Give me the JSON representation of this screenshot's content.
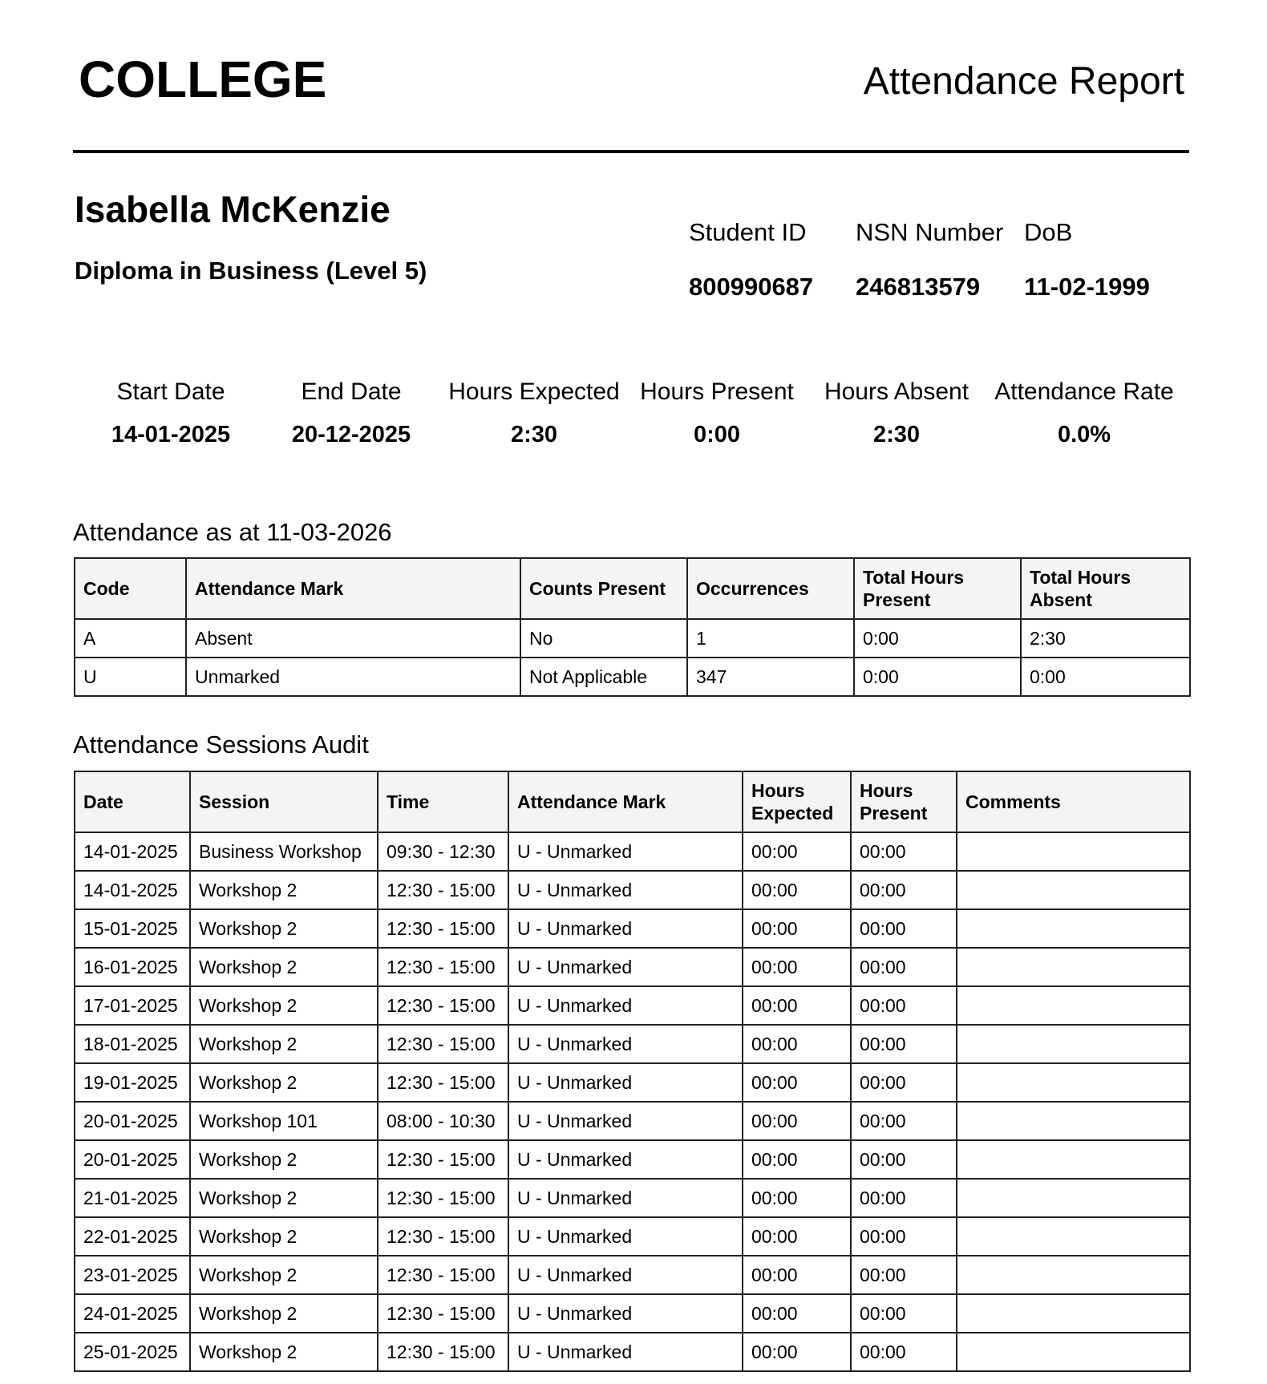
{
  "header": {
    "title": "COLLEGE",
    "report_title": "Attendance Report"
  },
  "student": {
    "name": "Isabella McKenzie",
    "course": "Diploma in Business (Level 5)",
    "fields": [
      {
        "label": "Student ID",
        "value": "800990687"
      },
      {
        "label": "NSN Number",
        "value": "246813579"
      },
      {
        "label": "DoB",
        "value": "11-02-1999"
      }
    ]
  },
  "summary": [
    {
      "label": "Start Date",
      "value": "14-01-2025"
    },
    {
      "label": "End Date",
      "value": "20-12-2025"
    },
    {
      "label": "Hours Expected",
      "value": "2:30"
    },
    {
      "label": "Hours Present",
      "value": "0:00"
    },
    {
      "label": "Hours Absent",
      "value": "2:30"
    },
    {
      "label": "Attendance Rate",
      "value": "0.0%"
    }
  ],
  "mark_summary": {
    "title": "Attendance as at 11-03-2026",
    "columns": [
      "Code",
      "Attendance Mark",
      "Counts Present",
      "Occurrences",
      "Total Hours Present",
      "Total Hours Absent"
    ],
    "rows": [
      [
        "A",
        "Absent",
        "No",
        "1",
        "0:00",
        "2:30"
      ],
      [
        "U",
        "Unmarked",
        "Not Applicable",
        "347",
        "0:00",
        "0:00"
      ]
    ]
  },
  "sessions_audit": {
    "title": "Attendance Sessions Audit",
    "columns": [
      "Date",
      "Session",
      "Time",
      "Attendance Mark",
      "Hours Expected",
      "Hours Present",
      "Comments"
    ],
    "rows": [
      [
        "14-01-2025",
        "Business Workshop",
        "09:30 - 12:30",
        "U - Unmarked",
        "00:00",
        "00:00"
      ],
      [
        "14-01-2025",
        "Workshop 2",
        "12:30 - 15:00",
        "U - Unmarked",
        "00:00",
        "00:00"
      ],
      [
        "15-01-2025",
        "Workshop 2",
        "12:30 - 15:00",
        "U - Unmarked",
        "00:00",
        "00:00"
      ],
      [
        "16-01-2025",
        "Workshop 2",
        "12:30 - 15:00",
        "U - Unmarked",
        "00:00",
        "00:00"
      ],
      [
        "17-01-2025",
        "Workshop 2",
        "12:30 - 15:00",
        "U - Unmarked",
        "00:00",
        "00:00"
      ],
      [
        "18-01-2025",
        "Workshop 2",
        "12:30 - 15:00",
        "U - Unmarked",
        "00:00",
        "00:00"
      ],
      [
        "19-01-2025",
        "Workshop 2",
        "12:30 - 15:00",
        "U - Unmarked",
        "00:00",
        "00:00"
      ],
      [
        "20-01-2025",
        "Workshop 101",
        "08:00 - 10:30",
        "U - Unmarked",
        "00:00",
        "00:00"
      ],
      [
        "20-01-2025",
        "Workshop 2",
        "12:30 - 15:00",
        "U - Unmarked",
        "00:00",
        "00:00"
      ],
      [
        "21-01-2025",
        "Workshop 2",
        "12:30 - 15:00",
        "U - Unmarked",
        "00:00",
        "00:00"
      ],
      [
        "22-01-2025",
        "Workshop 2",
        "12:30 - 15:00",
        "U - Unmarked",
        "00:00",
        "00:00"
      ],
      [
        "23-01-2025",
        "Workshop 2",
        "12:30 - 15:00",
        "U - Unmarked",
        "00:00",
        "00:00"
      ],
      [
        "24-01-2025",
        "Workshop 2",
        "12:30 - 15:00",
        "U - Unmarked",
        "00:00",
        "00:00"
      ],
      [
        "25-01-2025",
        "Workshop 2",
        "12:30 - 15:00",
        "U - Unmarked",
        "00:00",
        "00:00"
      ]
    ]
  }
}
